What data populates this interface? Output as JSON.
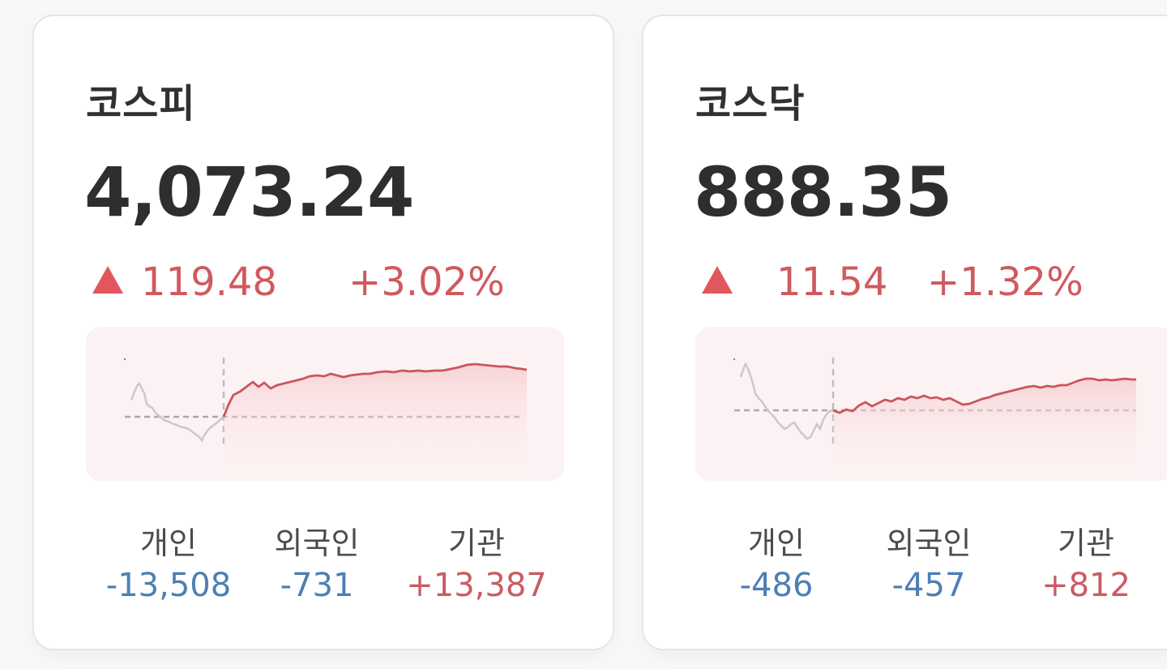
{
  "cards": [
    {
      "title": "코스피",
      "value": "4,073.24",
      "change_abs": "119.48",
      "change_pct": "+3.02%",
      "direction": "up",
      "investors": [
        {
          "label": "개인",
          "value": "-13,508",
          "sign": "neg"
        },
        {
          "label": "외국인",
          "value": "-731",
          "sign": "neg"
        },
        {
          "label": "기관",
          "value": "+13,387",
          "sign": "pos"
        }
      ]
    },
    {
      "title": "코스닥",
      "value": "888.35",
      "change_abs": "11.54",
      "change_pct": "+1.32%",
      "direction": "up",
      "investors": [
        {
          "label": "개인",
          "value": "-486",
          "sign": "neg"
        },
        {
          "label": "외국인",
          "value": "-457",
          "sign": "neg"
        },
        {
          "label": "기관",
          "value": "+812",
          "sign": "pos"
        }
      ]
    }
  ],
  "colors": {
    "up": "#e0585e",
    "up_text": "#cf5a5f",
    "down_text": "#4d7fb4",
    "prev_day_line": "#c8c8c8",
    "chart_bg": "#fdf2f3"
  }
}
